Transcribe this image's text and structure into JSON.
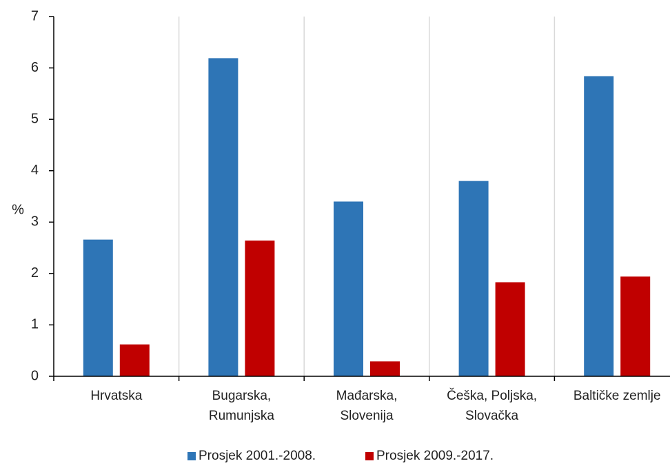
{
  "chart_data": {
    "type": "bar",
    "ylabel": "%",
    "ylim": [
      0,
      7
    ],
    "yticks": [
      0,
      1,
      2,
      3,
      4,
      5,
      6,
      7
    ],
    "grid": "vertical category separators",
    "legend_position": "bottom-center",
    "categories": [
      [
        "Hrvatska"
      ],
      [
        "Bugarska,",
        "Rumunjska"
      ],
      [
        "Mađarska,",
        "Slovenija"
      ],
      [
        "Češka, Poljska,",
        "Slovačka"
      ],
      [
        "Baltičke zemlje"
      ]
    ],
    "series": [
      {
        "name": "Prosjek 2001.-2008.",
        "color": "#2E75B6",
        "values": [
          2.66,
          6.19,
          3.4,
          3.8,
          5.84
        ]
      },
      {
        "name": "Prosjek 2009.-2017.",
        "color": "#C00000",
        "values": [
          0.62,
          2.64,
          0.29,
          1.83,
          1.94
        ]
      }
    ]
  }
}
